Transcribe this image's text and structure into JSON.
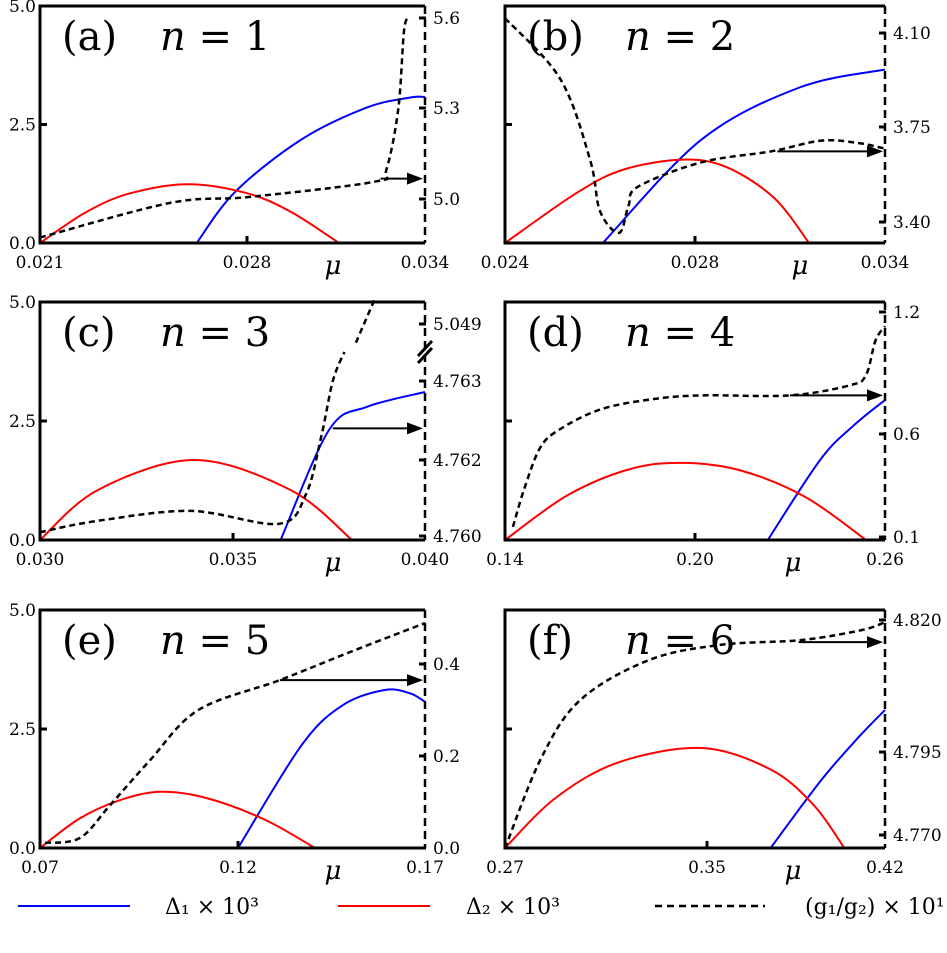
{
  "chart_data": [
    {
      "type": "line",
      "panel_label": "(a)",
      "title": "n = 1",
      "xlabel": "μ",
      "xticks": [
        "0.021",
        "0.028",
        "0.034"
      ],
      "xtick_values": [
        0.021,
        0.028,
        0.034
      ],
      "yticks_left": [
        "0.0",
        "2.5",
        "5.0"
      ],
      "ylim_left": [
        0,
        5
      ],
      "yticks_right": [
        "5.0",
        "5.3",
        "5.6"
      ],
      "ytick_values_right": [
        5.0,
        5.3,
        5.6
      ],
      "series": [
        {
          "key": "d1",
          "axis": "left",
          "points": [
            [
              0.0263,
              0
            ],
            [
              0.0276,
              1.08
            ],
            [
              0.0298,
              2.17
            ],
            [
              0.032,
              2.85
            ],
            [
              0.0335,
              3.07
            ],
            [
              0.034,
              3.08
            ]
          ]
        },
        {
          "key": "d2",
          "axis": "left",
          "points": [
            [
              0.021,
              0
            ],
            [
              0.0225,
              0.63
            ],
            [
              0.024,
              1.04
            ],
            [
              0.026,
              1.24
            ],
            [
              0.028,
              1.05
            ],
            [
              0.0295,
              0.65
            ],
            [
              0.0311,
              0
            ]
          ]
        },
        {
          "key": "g",
          "axis": "right",
          "points": [
            [
              0.021,
              4.873
            ],
            [
              0.0254,
              4.987
            ],
            [
              0.0281,
              5.007
            ],
            [
              0.0323,
              5.057
            ],
            [
              0.0327,
              5.097
            ],
            [
              0.0331,
              5.297
            ],
            [
              0.0333,
              5.563
            ],
            [
              0.0335,
              5.603
            ]
          ]
        }
      ],
      "arrow": {
        "from": 0.0325,
        "value": 5.067,
        "direction": "right"
      }
    },
    {
      "type": "line",
      "panel_label": "(b)",
      "title": "n = 2",
      "xlabel": "μ",
      "xticks": [
        "0.024",
        "0.028",
        "0.034"
      ],
      "xtick_values": [
        0.024,
        0.028,
        0.034
      ],
      "yticks_left": [
        "0.0",
        "2.5",
        "5.0"
      ],
      "ylim_left": [
        0,
        5
      ],
      "yticks_right": [
        "3.40",
        "3.75",
        "4.10"
      ],
      "ytick_values_right": [
        3.4,
        3.75,
        4.1
      ],
      "series": [
        {
          "key": "d1",
          "axis": "left",
          "points": [
            [
              0.02606,
              0
            ],
            [
              0.0282,
              2.18
            ],
            [
              0.0313,
              3.28
            ],
            [
              0.034,
              3.66
            ]
          ]
        },
        {
          "key": "d2",
          "axis": "left",
          "points": [
            [
              0.024,
              0
            ],
            [
              0.0255,
              1.05
            ],
            [
              0.0265,
              1.55
            ],
            [
              0.02775,
              1.76
            ],
            [
              0.029,
              1.6
            ],
            [
              0.0305,
              0.95
            ],
            [
              0.0316,
              0
            ]
          ]
        },
        {
          "key": "g",
          "axis": "right",
          "points": [
            [
              0.024,
              4.155
            ],
            [
              0.02516,
              3.93
            ],
            [
              0.02579,
              3.63
            ],
            [
              0.026,
              3.44
            ],
            [
              0.0264,
              3.36
            ],
            [
              0.0266,
              3.46
            ],
            [
              0.0268,
              3.53
            ],
            [
              0.0282,
              3.62
            ],
            [
              0.0304,
              3.66
            ],
            [
              0.032,
              3.7
            ],
            [
              0.0332,
              3.69
            ],
            [
              0.034,
              3.67
            ]
          ]
        }
      ],
      "arrow": {
        "from": 0.0306,
        "value": 3.66,
        "direction": "right"
      }
    },
    {
      "type": "line",
      "panel_label": "(c)",
      "title": "n = 3",
      "xlabel": "μ",
      "xticks": [
        "0.030",
        "0.035",
        "0.040"
      ],
      "xtick_values": [
        0.03,
        0.035,
        0.04
      ],
      "yticks_left": [
        "0.0",
        "2.5",
        "5.0"
      ],
      "ylim_left": [
        0,
        5
      ],
      "yticks_right": [
        "4.760",
        "4.762",
        "4.763",
        "5.049"
      ],
      "ytick_values_right": [
        4.76,
        4.762,
        4.763,
        5.049
      ],
      "right_axis_break": true,
      "series": [
        {
          "key": "d1",
          "axis": "left",
          "points": [
            [
              0.03624,
              0
            ],
            [
              0.0375,
              2.31
            ],
            [
              0.0385,
              2.8
            ],
            [
              0.04,
              3.11
            ]
          ]
        },
        {
          "key": "d2",
          "axis": "left",
          "points": [
            [
              0.03,
              0
            ],
            [
              0.0315,
              1.05
            ],
            [
              0.034,
              1.68
            ],
            [
              0.0365,
              1.05
            ],
            [
              0.0381,
              0
            ]
          ]
        },
        {
          "key": "g",
          "axis": "right",
          "points": [
            [
              0.03,
              4.7601
            ],
            [
              0.0315,
              4.7604
            ],
            [
              0.0339,
              4.76066
            ],
            [
              0.0362,
              4.76032
            ],
            [
              0.0369,
              4.7611
            ],
            [
              0.0373,
              4.7623
            ],
            [
              0.0376,
              4.763
            ],
            [
              0.0379,
              4.7634
            ]
          ]
        },
        {
          "key": "g",
          "axis": "right",
          "points": [
            [
              0.0382,
              5.041
            ],
            [
              0.0387,
              5.06
            ]
          ]
        }
      ],
      "arrow": {
        "from": 0.0376,
        "value": 4.7624,
        "direction": "right"
      }
    },
    {
      "type": "line",
      "panel_label": "(d)",
      "title": "n = 4",
      "xlabel": "μ",
      "xticks": [
        "0.14",
        "0.20",
        "0.26"
      ],
      "xtick_values": [
        0.14,
        0.2,
        0.26
      ],
      "yticks_left": [
        "0.0",
        "2.5",
        "5.0"
      ],
      "ylim_left": [
        0,
        5
      ],
      "yticks_right": [
        "0.1",
        "0.6",
        "1.2"
      ],
      "ytick_values_right": [
        0.1,
        0.6,
        1.2
      ],
      "series": [
        {
          "key": "d1",
          "axis": "left",
          "points": [
            [
              0.223,
              0
            ],
            [
              0.2395,
              1.68
            ],
            [
              0.25,
              2.4
            ],
            [
              0.26,
              2.94
            ]
          ]
        },
        {
          "key": "d2",
          "axis": "left",
          "points": [
            [
              0.14,
              0
            ],
            [
              0.16,
              0.95
            ],
            [
              0.18,
              1.5
            ],
            [
              0.197,
              1.62
            ],
            [
              0.215,
              1.45
            ],
            [
              0.235,
              0.9
            ],
            [
              0.254,
              0
            ]
          ]
        },
        {
          "key": "g",
          "axis": "right",
          "points": [
            [
              0.1425,
              0.149
            ],
            [
              0.146,
              0.33
            ],
            [
              0.151,
              0.53
            ],
            [
              0.157,
              0.62
            ],
            [
              0.17,
              0.72
            ],
            [
              0.186,
              0.77
            ],
            [
              0.202,
              0.79
            ],
            [
              0.23,
              0.79
            ],
            [
              0.249,
              0.84
            ],
            [
              0.254,
              0.89
            ],
            [
              0.257,
              1.06
            ],
            [
              0.26,
              1.13
            ]
          ]
        }
      ],
      "arrow": {
        "from": 0.23,
        "value": 0.79,
        "direction": "right"
      }
    },
    {
      "type": "line",
      "panel_label": "(e)",
      "title": "n = 5",
      "xlabel": "μ",
      "xticks": [
        "0.07",
        "0.12",
        "0.17"
      ],
      "xtick_values": [
        0.07,
        0.12,
        0.17
      ],
      "yticks_left": [
        "0.0",
        "2.5",
        "5.0"
      ],
      "ylim_left": [
        0,
        5
      ],
      "yticks_right": [
        "0.0",
        "0.2",
        "0.4"
      ],
      "ytick_values_right": [
        0.0,
        0.2,
        0.4
      ],
      "series": [
        {
          "key": "d1",
          "axis": "left",
          "points": [
            [
              0.12,
              0
            ],
            [
              0.137,
              2.16
            ],
            [
              0.148,
              3.0
            ],
            [
              0.1592,
              3.32
            ],
            [
              0.166,
              3.25
            ],
            [
              0.17,
              3.07
            ]
          ]
        },
        {
          "key": "d2",
          "axis": "left",
          "points": [
            [
              0.07,
              0
            ],
            [
              0.08,
              0.62
            ],
            [
              0.09,
              1.0
            ],
            [
              0.1003,
              1.18
            ],
            [
              0.112,
              1.05
            ],
            [
              0.127,
              0.6
            ],
            [
              0.1406,
              0
            ]
          ]
        },
        {
          "key": "g",
          "axis": "right",
          "points": [
            [
              0.0713,
              0.011
            ],
            [
              0.0801,
              0.022
            ],
            [
              0.0877,
              0.093
            ],
            [
              0.0977,
              0.19
            ],
            [
              0.11,
              0.3
            ],
            [
              0.1312,
              0.365
            ],
            [
              0.15,
              0.426
            ],
            [
              0.17,
              0.489
            ]
          ]
        }
      ],
      "arrow": {
        "from": 0.1312,
        "value": 0.365,
        "direction": "right"
      }
    },
    {
      "type": "line",
      "panel_label": "(f)",
      "title": "n = 6",
      "xlabel": "μ",
      "xticks": [
        "0.27",
        "0.35",
        "0.42"
      ],
      "xtick_values": [
        0.27,
        0.35,
        0.42
      ],
      "yticks_left": [
        "0.0",
        "2.5",
        "5.0"
      ],
      "ylim_left": [
        0,
        5
      ],
      "yticks_right": [
        "4.770",
        "4.795",
        "4.820"
      ],
      "ytick_values_right": [
        4.77,
        4.795,
        4.82
      ],
      "series": [
        {
          "key": "d1",
          "axis": "left",
          "points": [
            [
              0.375,
              0
            ],
            [
              0.395,
              1.43
            ],
            [
              0.41,
              2.35
            ],
            [
              0.42,
              2.9
            ]
          ]
        },
        {
          "key": "d2",
          "axis": "left",
          "points": [
            [
              0.27,
              0
            ],
            [
              0.29,
              1.05
            ],
            [
              0.315,
              1.8
            ],
            [
              0.348,
              2.1
            ],
            [
              0.375,
              1.65
            ],
            [
              0.392,
              0.9
            ],
            [
              0.404,
              0
            ]
          ]
        },
        {
          "key": "g",
          "axis": "right",
          "points": [
            [
              0.27,
              4.766
            ],
            [
              0.284,
              4.7926
            ],
            [
              0.2997,
              4.8048
            ],
            [
              0.327,
              4.8124
            ],
            [
              0.3555,
              4.8153
            ],
            [
              0.387,
              4.8162
            ],
            [
              0.411,
              4.8181
            ],
            [
              0.42,
              4.8196
            ]
          ]
        }
      ],
      "arrow": {
        "from": 0.386,
        "value": 4.8158,
        "direction": "right"
      }
    }
  ],
  "legend": {
    "position": "bottom",
    "items": [
      {
        "key": "d1",
        "label": "Δ₁ × 10³",
        "color": "#0000ff",
        "style": "solid"
      },
      {
        "key": "d2",
        "label": "Δ₂ × 10³",
        "color": "#ff0000",
        "style": "solid"
      },
      {
        "key": "g",
        "label": "(g₁/g₂) × 10¹",
        "color": "#000000",
        "style": "dashed"
      }
    ]
  }
}
